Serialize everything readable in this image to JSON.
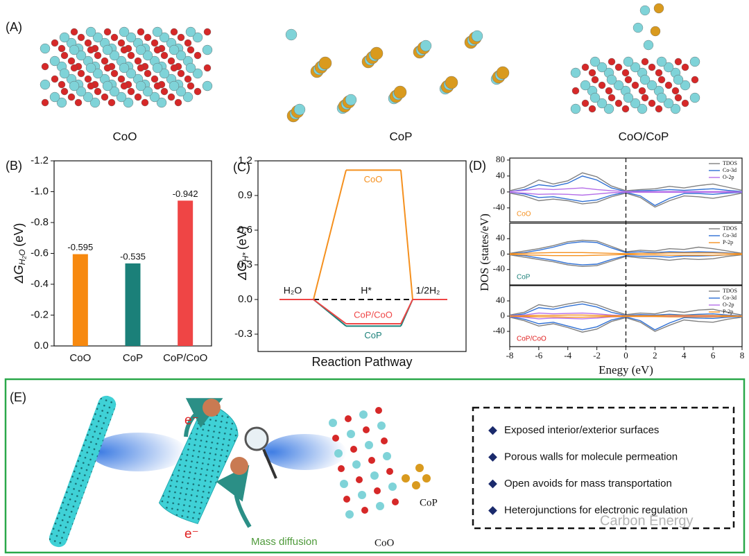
{
  "panel_a": {
    "label": "(A)",
    "structures": [
      "CoO",
      "CoP",
      "CoO/CoP"
    ]
  },
  "chart_data": [
    {
      "type": "bar",
      "panel_label": "(B)",
      "ylabel_symbol": "ΔG",
      "ylabel_subscript": "H₂O",
      "ylabel_unit": "(eV)",
      "categories": [
        "CoO",
        "CoP",
        "CoP/CoO"
      ],
      "values": [
        -0.595,
        -0.535,
        -0.942
      ],
      "colors": [
        "#f7890f",
        "#1b8079",
        "#ef4545"
      ],
      "ylim": [
        0,
        -1.2
      ],
      "yticks": [
        {
          "value": 0,
          "label": "0.0"
        },
        -0.2,
        -0.4,
        -0.6,
        -0.8,
        {
          "value": -1,
          "label": "-1.0"
        },
        -1.2
      ]
    },
    {
      "type": "pathway",
      "panel_label": "(C)",
      "ylabel_symbol": "ΔG",
      "ylabel_subscript": "H*",
      "ylabel_unit": "(eV)",
      "xlabel": "Reaction Pathway",
      "categories": [
        "H₂O",
        "H*",
        "1/2H₂"
      ],
      "series": [
        {
          "name": "CoO",
          "color": "#f5901e",
          "values": [
            0,
            1.12,
            0
          ]
        },
        {
          "name": "CoP",
          "color": "#1b8079",
          "values": [
            0,
            -0.23,
            0
          ]
        },
        {
          "name": "CoP/CoO",
          "color": "#ef4545",
          "values": [
            0,
            -0.21,
            0
          ]
        }
      ],
      "reference_value": 0,
      "ylim": [
        -0.45,
        1.2
      ],
      "yticks": [
        -0.3,
        {
          "value": 0,
          "label": "0.0"
        },
        0.3,
        0.6,
        0.9,
        1.2
      ]
    },
    {
      "type": "line",
      "panel_label": "(D)",
      "xlabel": "Enegy (eV)",
      "ylabel": "DOS (states/eV)",
      "x": [
        -8,
        -7,
        -6,
        -5,
        -4,
        -3,
        -2,
        -1,
        0,
        1,
        2,
        3,
        4,
        5,
        6,
        7,
        8
      ],
      "xlim": [
        -8,
        8
      ],
      "xticks": [
        -8,
        -6,
        -4,
        -2,
        0,
        2,
        4,
        6,
        8
      ],
      "fermi_level": 0,
      "panels": [
        {
          "label": "CoO",
          "label_color": "#f5901e",
          "ylim": [
            -75,
            85
          ],
          "yticks": [
            -40,
            0,
            40,
            80
          ],
          "series": [
            {
              "name": "TDOS",
              "color": "#808080",
              "values": [
                3,
                12,
                30,
                20,
                28,
                48,
                38,
                15,
                3,
                6,
                8,
                14,
                10,
                16,
                20,
                12,
                4
              ],
              "values_down": [
                -3,
                -10,
                -22,
                -18,
                -22,
                -30,
                -26,
                -12,
                -3,
                -14,
                -38,
                -22,
                -10,
                -12,
                -16,
                -10,
                -3
              ]
            },
            {
              "name": "Co-3d",
              "color": "#2e6fd4",
              "values": [
                1,
                6,
                18,
                14,
                22,
                40,
                30,
                10,
                1,
                3,
                4,
                6,
                4,
                6,
                8,
                4,
                1
              ],
              "values_down": [
                -1,
                -5,
                -14,
                -12,
                -18,
                -24,
                -20,
                -8,
                -1,
                -10,
                -34,
                -16,
                -4,
                -4,
                -6,
                -3,
                -1
              ]
            },
            {
              "name": "O-2p",
              "color": "#b56ee8",
              "values": [
                1,
                4,
                8,
                6,
                8,
                10,
                6,
                3,
                1,
                1,
                1,
                1,
                1,
                1,
                1,
                1,
                0
              ],
              "values_down": [
                -1,
                -3,
                -6,
                -5,
                -6,
                -8,
                -5,
                -2,
                -1,
                -1,
                -1,
                -1,
                -1,
                -1,
                -1,
                -1,
                0
              ]
            }
          ]
        },
        {
          "label": "CoP",
          "label_color": "#1b8079",
          "ylim": [
            -80,
            80
          ],
          "yticks": [
            -40,
            0,
            40
          ],
          "series": [
            {
              "name": "TDOS",
              "color": "#808080",
              "values": [
                2,
                8,
                14,
                22,
                32,
                36,
                34,
                20,
                6,
                10,
                8,
                14,
                12,
                18,
                14,
                8,
                2
              ],
              "values_down": [
                -2,
                -8,
                -14,
                -20,
                -28,
                -32,
                -30,
                -18,
                -6,
                -10,
                -12,
                -16,
                -12,
                -14,
                -12,
                -6,
                -2
              ]
            },
            {
              "name": "Co-3d",
              "color": "#2e6fd4",
              "values": [
                1,
                4,
                10,
                18,
                28,
                32,
                30,
                16,
                4,
                6,
                4,
                6,
                5,
                6,
                5,
                3,
                1
              ],
              "values_down": [
                -1,
                -4,
                -10,
                -16,
                -24,
                -28,
                -26,
                -14,
                -4,
                -6,
                -6,
                -8,
                -5,
                -5,
                -4,
                -2,
                -1
              ]
            },
            {
              "name": "P-2p",
              "color": "#f5901e",
              "values": [
                1,
                2,
                3,
                4,
                4,
                4,
                3,
                2,
                1,
                2,
                2,
                3,
                3,
                3,
                3,
                2,
                1
              ],
              "values_down": [
                -1,
                -2,
                -3,
                -4,
                -4,
                -4,
                -3,
                -2,
                -1,
                -2,
                -2,
                -3,
                -3,
                -3,
                -3,
                -2,
                -1
              ]
            }
          ]
        },
        {
          "label": "CoP/CoO",
          "label_color": "#e02020",
          "ylim": [
            -80,
            80
          ],
          "yticks": [
            -40,
            0,
            40
          ],
          "series": [
            {
              "name": "TDOS",
              "color": "#808080",
              "values": [
                3,
                10,
                30,
                24,
                32,
                38,
                30,
                16,
                4,
                8,
                6,
                14,
                10,
                16,
                18,
                10,
                3
              ],
              "values_down": [
                -3,
                -12,
                -26,
                -20,
                -30,
                -42,
                -34,
                -14,
                -4,
                -16,
                -40,
                -24,
                -10,
                -14,
                -16,
                -8,
                -3
              ]
            },
            {
              "name": "Co-3d",
              "color": "#2e6fd4",
              "values": [
                1,
                6,
                22,
                18,
                26,
                32,
                24,
                10,
                2,
                4,
                3,
                5,
                3,
                5,
                6,
                3,
                1
              ],
              "values_down": [
                -1,
                -8,
                -20,
                -16,
                -26,
                -36,
                -28,
                -10,
                -2,
                -12,
                -36,
                -18,
                -4,
                -5,
                -6,
                -3,
                -1
              ]
            },
            {
              "name": "O-2p",
              "color": "#b56ee8",
              "values": [
                1,
                3,
                8,
                6,
                7,
                8,
                6,
                3,
                1,
                1,
                1,
                1,
                1,
                1,
                1,
                1,
                0
              ],
              "values_down": [
                -1,
                -3,
                -7,
                -5,
                -6,
                -7,
                -5,
                -2,
                -1,
                -1,
                -1,
                -1,
                -1,
                -1,
                -1,
                -1,
                0
              ]
            },
            {
              "name": "P-2p",
              "color": "#f5901e",
              "values": [
                0,
                1,
                2,
                2,
                3,
                3,
                2,
                1,
                1,
                1,
                1,
                2,
                2,
                2,
                2,
                1,
                0
              ],
              "values_down": [
                0,
                -1,
                -2,
                -2,
                -3,
                -3,
                -2,
                -1,
                -1,
                -1,
                -1,
                -2,
                -2,
                -2,
                -2,
                -1,
                0
              ]
            }
          ]
        }
      ]
    }
  ],
  "panel_e": {
    "label": "(E)",
    "electron_labels": [
      "e⁻",
      "e⁻"
    ],
    "mass_diffusion": "Mass diffusion",
    "structure_labels": [
      "CoP",
      "CoO"
    ],
    "features": [
      "Exposed interior/exterior surfaces",
      "Porous walls for molecule permeation",
      "Open avoids for mass transportation",
      "Heterojunctions for electronic regulation"
    ],
    "watermark": "Carbon Energy"
  }
}
